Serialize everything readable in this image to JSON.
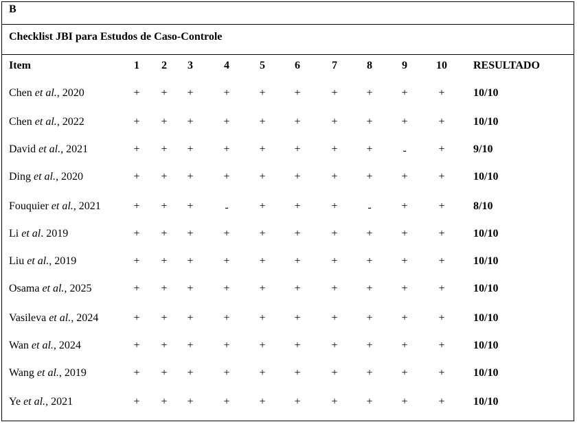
{
  "panel_label": "B",
  "title": "Checklist JBI para Estudos de Caso-Controle",
  "header": {
    "item": "Item",
    "columns": [
      "1",
      "2",
      "3",
      "4",
      "5",
      "6",
      "7",
      "8",
      "9",
      "10"
    ],
    "result": "RESULTADO"
  },
  "rows": [
    {
      "author": "Chen",
      "etal": "et al.",
      "year": ", 2020",
      "marks": [
        "+",
        "+",
        "+",
        "+",
        "+",
        "+",
        "+",
        "+",
        "+",
        "+"
      ],
      "result": "10/10"
    },
    {
      "author": "Chen",
      "etal": "et al.,",
      "year": " 2022",
      "marks": [
        "+",
        "+",
        "+",
        "+",
        "+",
        "+",
        "+",
        "+",
        "+",
        "+"
      ],
      "result": "10/10"
    },
    {
      "author": "David",
      "etal": "et al.",
      "year": ", 2021",
      "marks": [
        "+",
        "+",
        "+",
        "+",
        "+",
        "+",
        "+",
        "+",
        "-",
        "+"
      ],
      "result": "9/10"
    },
    {
      "author": "Ding",
      "etal": "et al.,",
      "year": " 2020",
      "marks": [
        "+",
        "+",
        "+",
        "+",
        "+",
        "+",
        "+",
        "+",
        "+",
        "+"
      ],
      "result": "10/10"
    },
    {
      "author": "Fouquier",
      "etal": "et al.,",
      "year": " 2021",
      "marks": [
        "+",
        "+",
        "+",
        "-",
        "+",
        "+",
        "+",
        "-",
        "+",
        "+"
      ],
      "result": "8/10"
    },
    {
      "author": "Li",
      "etal": "et al",
      "year": ". 2019",
      "marks": [
        "+",
        "+",
        "+",
        "+",
        "+",
        "+",
        "+",
        "+",
        "+",
        "+"
      ],
      "result": "10/10"
    },
    {
      "author": "Liu",
      "etal": "et al.",
      "year": ", 2019",
      "marks": [
        "+",
        "+",
        "+",
        "+",
        "+",
        "+",
        "+",
        "+",
        "+",
        "+"
      ],
      "result": "10/10"
    },
    {
      "author": "Osama",
      "etal": "et al.,",
      "year": " 2025",
      "marks": [
        "+",
        "+",
        "+",
        "+",
        "+",
        "+",
        "+",
        "+",
        "+",
        "+"
      ],
      "result": "10/10"
    },
    {
      "author": "Vasileva",
      "etal": "et al.",
      "year": ", 2024",
      "marks": [
        "+",
        "+",
        "+",
        "+",
        "+",
        "+",
        "+",
        "+",
        "+",
        "+"
      ],
      "result": "10/10"
    },
    {
      "author": "Wan",
      "etal": "et al.,",
      "year": " 2024",
      "marks": [
        "+",
        "+",
        "+",
        "+",
        "+",
        "+",
        "+",
        "+",
        "+",
        "+"
      ],
      "result": "10/10"
    },
    {
      "author": "Wang",
      "etal": "et al.",
      "year": ", 2019",
      "marks": [
        "+",
        "+",
        "+",
        "+",
        "+",
        "+",
        "+",
        "+",
        "+",
        "+"
      ],
      "result": "10/10"
    },
    {
      "author": "Ye",
      "etal": "et al.",
      "year": ", 2021",
      "marks": [
        "+",
        "+",
        "+",
        "+",
        "+",
        "+",
        "+",
        "+",
        "+",
        "+"
      ],
      "result": "10/10"
    }
  ]
}
